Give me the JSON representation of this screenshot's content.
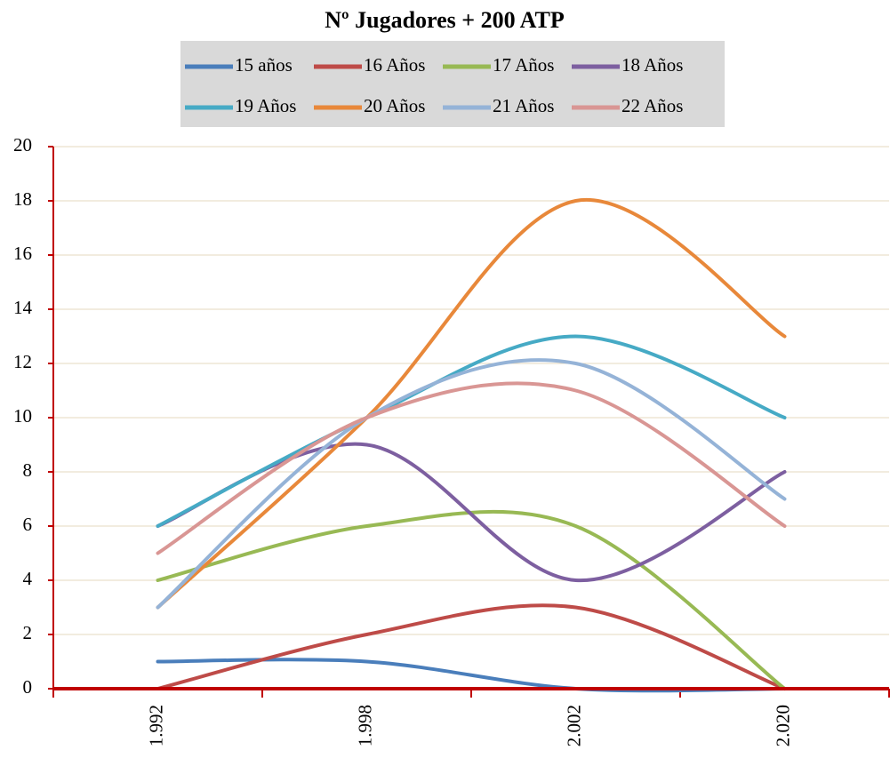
{
  "chart_data": {
    "type": "line",
    "title": "Nº Jugadores + 200 ATP",
    "categories": [
      "1.992",
      "1.998",
      "2.002",
      "2.020"
    ],
    "series": [
      {
        "name": "15 años",
        "color": "#4a7ebb",
        "values": [
          1,
          1,
          0,
          0
        ]
      },
      {
        "name": "16 Años",
        "color": "#be4b48",
        "values": [
          0,
          2,
          3,
          0
        ]
      },
      {
        "name": "17 Años",
        "color": "#98b954",
        "values": [
          4,
          6,
          6,
          0
        ]
      },
      {
        "name": "18 Años",
        "color": "#7d5fa0",
        "values": [
          6,
          9,
          4,
          8
        ]
      },
      {
        "name": "19 Años",
        "color": "#46aac5",
        "values": [
          6,
          10,
          13,
          10
        ]
      },
      {
        "name": "20 Años",
        "color": "#e8883a",
        "values": [
          3,
          10,
          18,
          13
        ]
      },
      {
        "name": "21 Años",
        "color": "#95b3d7",
        "values": [
          3,
          10,
          12,
          7
        ]
      },
      {
        "name": "22 Años",
        "color": "#d99694",
        "values": [
          5,
          10,
          11,
          6
        ]
      }
    ],
    "ylim": [
      0,
      20
    ],
    "yticks": [
      0,
      2,
      4,
      6,
      8,
      10,
      12,
      14,
      16,
      18,
      20
    ],
    "grid": true,
    "smooth": true
  }
}
